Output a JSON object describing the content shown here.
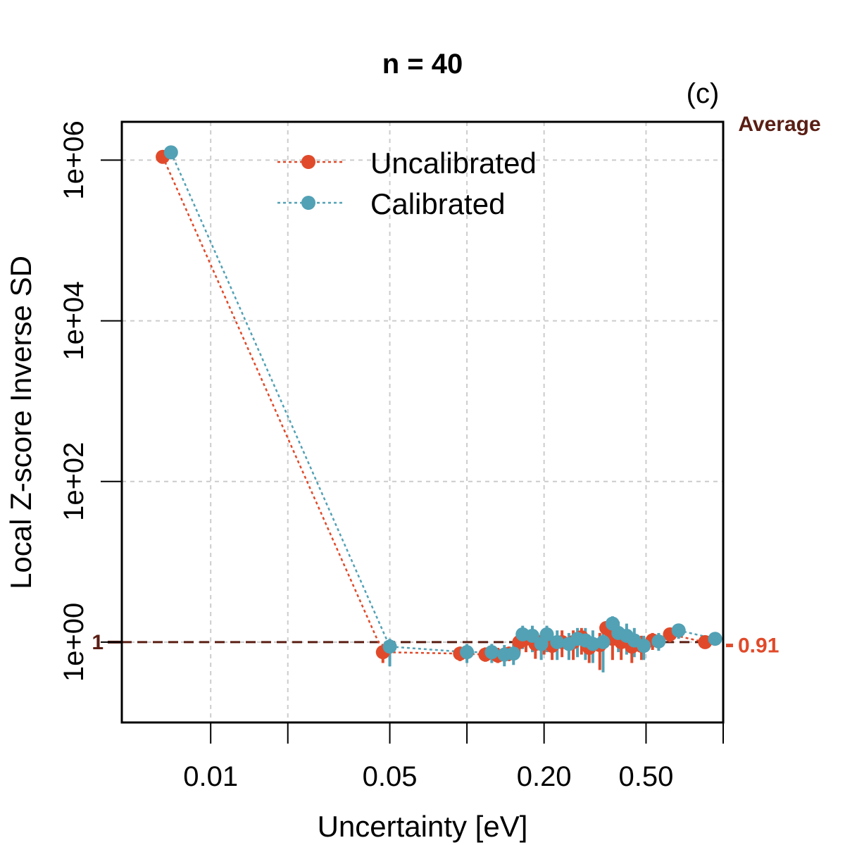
{
  "chart_data": {
    "type": "scatter",
    "title": "n = 40",
    "panel_label": "(c)",
    "xlabel": "Uncertainty [eV]",
    "ylabel": "Local Z-score Inverse SD",
    "x_scale": "log",
    "y_scale": "log",
    "xlim": [
      0.0045,
      1.0
    ],
    "ylim": [
      0.1,
      3000000
    ],
    "x_ticks": [
      {
        "value": 0.01,
        "label": "0.01"
      },
      {
        "value": 0.02,
        "label": ""
      },
      {
        "value": 0.05,
        "label": "0.05"
      },
      {
        "value": 0.1,
        "label": ""
      },
      {
        "value": 0.2,
        "label": "0.20"
      },
      {
        "value": 0.5,
        "label": "0.50"
      },
      {
        "value": 1.0,
        "label": ""
      }
    ],
    "y_ticks": [
      {
        "value": 1,
        "label": "1e+00"
      },
      {
        "value": 100,
        "label": "1e+02"
      },
      {
        "value": 10000,
        "label": "1e+04"
      },
      {
        "value": 1000000,
        "label": "1e+06"
      }
    ],
    "grid": true,
    "reference": {
      "value": 1,
      "label": "1",
      "style": "dashed",
      "color": "#5a1e14"
    },
    "average": {
      "header": "Average",
      "value": 0.91,
      "label": "0.91"
    },
    "legend": {
      "position": "top-center",
      "entries": [
        "Uncalibrated",
        "Calibrated"
      ]
    },
    "colors": {
      "uncalibrated": "#e04a2a",
      "calibrated": "#52a1b5",
      "reference": "#5a1e14",
      "grid": "#cccccc"
    },
    "series": [
      {
        "name": "Uncalibrated",
        "color": "#e04a2a",
        "points": [
          {
            "x": 0.0065,
            "y": 1100000,
            "lo": 950000,
            "hi": 1250000
          },
          {
            "x": 0.047,
            "y": 0.75,
            "lo": 0.55,
            "hi": 0.95
          },
          {
            "x": 0.094,
            "y": 0.72,
            "lo": 0.58,
            "hi": 0.88
          },
          {
            "x": 0.118,
            "y": 0.7,
            "lo": 0.57,
            "hi": 0.86
          },
          {
            "x": 0.132,
            "y": 0.68,
            "lo": 0.55,
            "hi": 0.85
          },
          {
            "x": 0.146,
            "y": 0.72,
            "lo": 0.58,
            "hi": 0.88
          },
          {
            "x": 0.16,
            "y": 1.0,
            "lo": 0.72,
            "hi": 1.35
          },
          {
            "x": 0.17,
            "y": 1.1,
            "lo": 0.75,
            "hi": 1.4
          },
          {
            "x": 0.185,
            "y": 0.95,
            "lo": 0.62,
            "hi": 1.3
          },
          {
            "x": 0.2,
            "y": 1.05,
            "lo": 0.7,
            "hi": 1.4
          },
          {
            "x": 0.215,
            "y": 0.9,
            "lo": 0.6,
            "hi": 1.3
          },
          {
            "x": 0.235,
            "y": 1.0,
            "lo": 0.65,
            "hi": 1.4
          },
          {
            "x": 0.26,
            "y": 1.0,
            "lo": 0.6,
            "hi": 1.4
          },
          {
            "x": 0.28,
            "y": 1.15,
            "lo": 0.7,
            "hi": 1.5
          },
          {
            "x": 0.3,
            "y": 0.85,
            "lo": 0.55,
            "hi": 1.2
          },
          {
            "x": 0.33,
            "y": 0.92,
            "lo": 0.45,
            "hi": 1.3
          },
          {
            "x": 0.35,
            "y": 1.5,
            "lo": 0.9,
            "hi": 1.8
          },
          {
            "x": 0.37,
            "y": 1.1,
            "lo": 0.6,
            "hi": 1.5
          },
          {
            "x": 0.4,
            "y": 1.0,
            "lo": 0.6,
            "hi": 1.4
          },
          {
            "x": 0.44,
            "y": 0.88,
            "lo": 0.55,
            "hi": 1.2
          },
          {
            "x": 0.48,
            "y": 0.9,
            "lo": 0.6,
            "hi": 1.2
          },
          {
            "x": 0.53,
            "y": 1.05,
            "lo": 0.8,
            "hi": 1.3
          },
          {
            "x": 0.62,
            "y": 1.25,
            "lo": 1.0,
            "hi": 1.5
          },
          {
            "x": 0.85,
            "y": 1.0,
            "lo": 0.88,
            "hi": 1.13
          }
        ]
      },
      {
        "name": "Calibrated",
        "color": "#52a1b5",
        "points": [
          {
            "x": 0.007,
            "y": 1250000,
            "lo": 1050000,
            "hi": 1450000
          },
          {
            "x": 0.05,
            "y": 0.88,
            "lo": 0.5,
            "hi": 1.1
          },
          {
            "x": 0.1,
            "y": 0.75,
            "lo": 0.55,
            "hi": 0.95
          },
          {
            "x": 0.125,
            "y": 0.75,
            "lo": 0.55,
            "hi": 0.95
          },
          {
            "x": 0.14,
            "y": 0.7,
            "lo": 0.5,
            "hi": 0.92
          },
          {
            "x": 0.152,
            "y": 0.72,
            "lo": 0.52,
            "hi": 0.95
          },
          {
            "x": 0.165,
            "y": 1.25,
            "lo": 0.82,
            "hi": 1.6
          },
          {
            "x": 0.18,
            "y": 1.2,
            "lo": 0.75,
            "hi": 1.6
          },
          {
            "x": 0.195,
            "y": 0.95,
            "lo": 0.6,
            "hi": 1.3
          },
          {
            "x": 0.205,
            "y": 1.25,
            "lo": 0.75,
            "hi": 1.6
          },
          {
            "x": 0.225,
            "y": 1.0,
            "lo": 0.6,
            "hi": 1.4
          },
          {
            "x": 0.25,
            "y": 0.95,
            "lo": 0.6,
            "hi": 1.3
          },
          {
            "x": 0.27,
            "y": 1.1,
            "lo": 0.65,
            "hi": 1.5
          },
          {
            "x": 0.29,
            "y": 1.05,
            "lo": 0.6,
            "hi": 1.5
          },
          {
            "x": 0.31,
            "y": 0.95,
            "lo": 0.55,
            "hi": 1.4
          },
          {
            "x": 0.34,
            "y": 1.0,
            "lo": 0.42,
            "hi": 1.4
          },
          {
            "x": 0.37,
            "y": 1.7,
            "lo": 1.0,
            "hi": 2.1
          },
          {
            "x": 0.39,
            "y": 1.3,
            "lo": 0.75,
            "hi": 1.8
          },
          {
            "x": 0.42,
            "y": 1.2,
            "lo": 0.7,
            "hi": 1.7
          },
          {
            "x": 0.45,
            "y": 1.05,
            "lo": 0.65,
            "hi": 1.5
          },
          {
            "x": 0.49,
            "y": 0.9,
            "lo": 0.6,
            "hi": 1.2
          },
          {
            "x": 0.56,
            "y": 1.02,
            "lo": 0.78,
            "hi": 1.3
          },
          {
            "x": 0.67,
            "y": 1.4,
            "lo": 1.1,
            "hi": 1.7
          },
          {
            "x": 0.93,
            "y": 1.1,
            "lo": 0.95,
            "hi": 1.25
          }
        ]
      }
    ]
  }
}
